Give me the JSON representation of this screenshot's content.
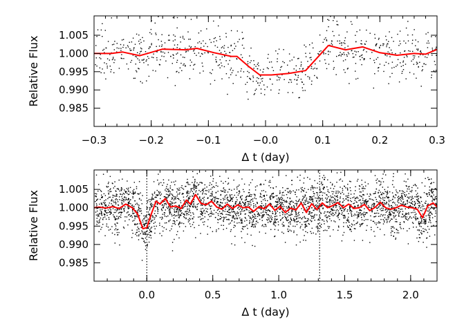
{
  "chart_data": [
    {
      "type": "scatter",
      "title": "",
      "xlabel": "Δ t (day)",
      "ylabel": "Relative Flux",
      "xlim": [
        -0.3,
        0.3
      ],
      "ylim": [
        0.98,
        1.0103
      ],
      "xticks": [
        -0.3,
        -0.2,
        -0.1,
        0.0,
        0.1,
        0.2,
        0.3
      ],
      "xtick_labels": [
        "−0.3",
        "−0.2",
        "−0.1",
        "−0.0",
        "0.1",
        "0.2",
        "0.3"
      ],
      "yticks": [
        0.985,
        0.99,
        0.995,
        1.0,
        1.005
      ],
      "ytick_labels": [
        "0.985",
        "0.990",
        "0.995",
        "1.000",
        "1.005"
      ],
      "point_color": "#000000",
      "scatter_noise_sigma": 0.0035,
      "n_points": 800,
      "series": [
        {
          "type": "line",
          "color": "#ff0000",
          "x": [
            -0.3,
            -0.27,
            -0.25,
            -0.22,
            -0.18,
            -0.14,
            -0.12,
            -0.09,
            -0.06,
            -0.05,
            -0.03,
            -0.01,
            0.01,
            0.04,
            0.07,
            0.11,
            0.14,
            0.17,
            0.2,
            0.23,
            0.26,
            0.28,
            0.3
          ],
          "y": [
            1.0,
            1.0,
            1.0004,
            0.9994,
            1.0012,
            1.001,
            1.0014,
            1.0002,
            0.9992,
            0.9992,
            0.9965,
            0.9941,
            0.9941,
            0.9945,
            0.9953,
            1.0022,
            1.001,
            1.0018,
            1.0002,
            0.9995,
            1.0,
            0.9998,
            1.0011
          ]
        }
      ]
    },
    {
      "type": "scatter",
      "title": "",
      "xlabel": "Δ t (day)",
      "ylabel": "Relative Flux",
      "xlim": [
        -0.4,
        2.2
      ],
      "ylim": [
        0.98,
        1.0103
      ],
      "xticks": [
        0.0,
        0.5,
        1.0,
        1.5,
        2.0
      ],
      "xtick_labels": [
        "0.0",
        "0.5",
        "1.0",
        "1.5",
        "2.0"
      ],
      "yticks": [
        0.985,
        0.99,
        0.995,
        1.0,
        1.005
      ],
      "ytick_labels": [
        "0.985",
        "0.990",
        "0.995",
        "1.000",
        "1.005"
      ],
      "vlines": [
        0.0,
        1.31
      ],
      "point_color": "#000000",
      "scatter_noise_sigma": 0.0035,
      "n_points": 3200,
      "series": [
        {
          "type": "line",
          "color": "#ff0000",
          "x": [
            -0.4,
            -0.36,
            -0.31,
            -0.26,
            -0.21,
            -0.16,
            -0.11,
            -0.07,
            -0.03,
            0.0,
            0.03,
            0.07,
            0.1,
            0.14,
            0.18,
            0.22,
            0.26,
            0.3,
            0.33,
            0.37,
            0.41,
            0.45,
            0.49,
            0.53,
            0.57,
            0.61,
            0.65,
            0.69,
            0.73,
            0.77,
            0.81,
            0.85,
            0.89,
            0.93,
            0.97,
            1.01,
            1.05,
            1.09,
            1.13,
            1.17,
            1.21,
            1.25,
            1.29,
            1.33,
            1.37,
            1.41,
            1.45,
            1.49,
            1.53,
            1.57,
            1.61,
            1.65,
            1.69,
            1.73,
            1.77,
            1.81,
            1.85,
            1.89,
            1.93,
            1.97,
            2.01,
            2.05,
            2.09,
            2.13,
            2.17,
            2.2
          ],
          "y": [
            1.0,
            1.0002,
            0.9999,
            1.0003,
            0.9998,
            1.001,
            1.0,
            0.9983,
            0.9943,
            0.9946,
            0.9979,
            1.0018,
            1.001,
            1.0025,
            1.0002,
            1.0005,
            0.9998,
            1.0021,
            1.001,
            1.0036,
            1.0012,
            1.0008,
            1.0018,
            1.0002,
            0.9996,
            1.001,
            0.9998,
            1.0008,
            1.0,
            1.0002,
            0.999,
            1.0003,
            0.9997,
            1.001,
            0.9993,
            1.0004,
            0.9987,
            0.9999,
            0.9994,
            1.0013,
            0.9987,
            1.0011,
            0.9995,
            1.0013,
            1.0,
            1.0006,
            1.0014,
            1.0,
            1.001,
            0.9998,
            1.0,
            1.0009,
            0.9992,
            1.0001,
            1.0015,
            1.0,
            0.9996,
            1.0,
            1.0007,
            1.0002,
            1.0,
            0.9996,
            0.9973,
            1.0005,
            1.0013,
            1.0002
          ]
        }
      ]
    }
  ]
}
